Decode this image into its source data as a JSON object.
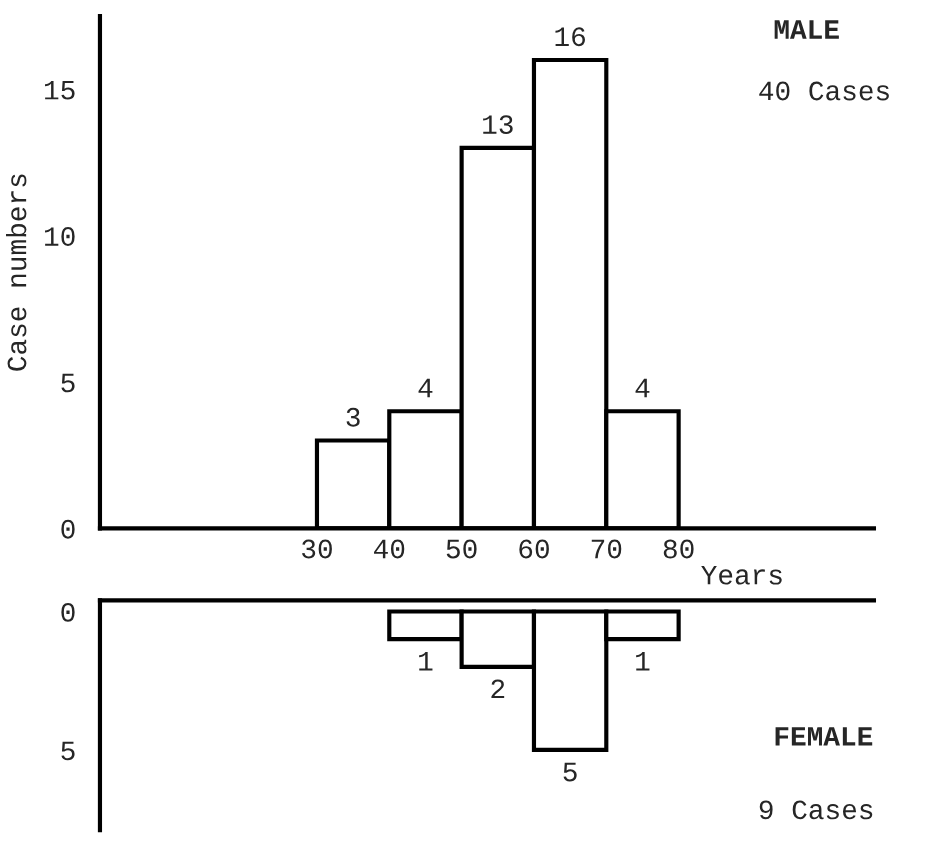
{
  "chart_data": [
    {
      "type": "histogram",
      "bins": [
        30,
        40,
        50,
        60,
        70,
        80
      ],
      "values": [
        3,
        4,
        13,
        16,
        4
      ],
      "ylabel": "Case numbers",
      "xlabel": "Years",
      "xlim": [
        0,
        107
      ],
      "xticks": [
        30,
        40,
        50,
        60,
        70,
        80
      ],
      "ylim": [
        0,
        17.5
      ],
      "yticks": [
        0,
        5,
        10,
        15
      ],
      "data_labels": true,
      "annotations": [
        "MALE",
        "40 Cases"
      ]
    },
    {
      "type": "histogram",
      "bins": [
        40,
        50,
        60,
        70,
        80
      ],
      "values": [
        1,
        2,
        5,
        1
      ],
      "xlim": [
        0,
        107
      ],
      "ylim": [
        7.9,
        -0.4
      ],
      "yticks": [
        0,
        5
      ],
      "tick_labels": "y",
      "data_labels": true,
      "annotations": [
        "FEMALE",
        "9 Cases"
      ]
    }
  ]
}
